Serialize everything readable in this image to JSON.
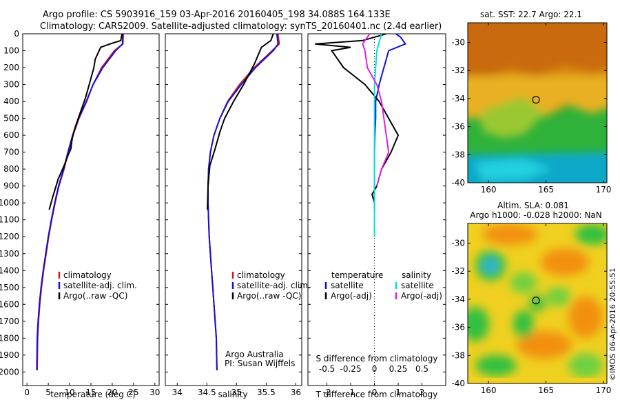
{
  "header": {
    "line1": "Argo profile: CS 5903916_159 03-Apr-2016 20160405_198 34.088S 164.133E",
    "line2": "Climatology: CARS2009. Satellite-adjusted climatology: synTS_20160401.nc (2.4d earlier)"
  },
  "colors": {
    "climatology": "#d01818",
    "satellite": "#1010e0",
    "argo": "#000000",
    "salinity_sat": "#00e0e0",
    "salinity_argo": "#e020e0"
  },
  "chart_data": [
    {
      "name": "temperature-panel",
      "type": "line",
      "xlabel": "temperature (deg C)",
      "ylabel": "",
      "xlim": [
        -1,
        31
      ],
      "ylim": [
        2080,
        0
      ],
      "xticks": [
        0,
        5,
        10,
        15,
        20,
        25,
        30
      ],
      "yticks": [
        0,
        100,
        200,
        300,
        400,
        500,
        600,
        700,
        800,
        900,
        1000,
        1100,
        1200,
        1300,
        1400,
        1500,
        1600,
        1700,
        1800,
        1900,
        2000
      ],
      "legend": {
        "items": [
          {
            "label": "climatology",
            "color": "#d01818"
          },
          {
            "label": "satellite-adj. clim.",
            "color": "#1010e0"
          },
          {
            "label": "Argo(..raw -QC)",
            "color": "#000000"
          }
        ]
      },
      "series": [
        {
          "name": "climatology",
          "color": "#d01818",
          "x": [
            22.6,
            22.5,
            20.5,
            17.5,
            15.5,
            14.0,
            12.2,
            10.8,
            9.7,
            8.7,
            7.5,
            6.6,
            5.8,
            5.1,
            4.5,
            3.9,
            3.4,
            3.0,
            2.7,
            2.5,
            2.4
          ],
          "y": [
            0,
            60,
            100,
            200,
            300,
            400,
            500,
            600,
            700,
            800,
            900,
            1000,
            1100,
            1200,
            1300,
            1400,
            1500,
            1600,
            1700,
            1800,
            1990
          ]
        },
        {
          "name": "satellite-adj. clim.",
          "color": "#1010e0",
          "x": [
            22.5,
            22.4,
            20.8,
            17.8,
            15.5,
            13.9,
            12.1,
            10.7,
            9.6,
            8.6,
            7.4,
            6.5,
            5.7,
            5.0,
            4.4,
            3.8,
            3.3,
            2.9,
            2.6,
            2.4,
            2.3
          ],
          "y": [
            0,
            60,
            100,
            200,
            300,
            400,
            500,
            600,
            700,
            800,
            900,
            1000,
            1100,
            1200,
            1300,
            1400,
            1500,
            1600,
            1700,
            1800,
            1990
          ]
        },
        {
          "name": "Argo(..raw -QC)",
          "color": "#000000",
          "x": [
            22.3,
            22.0,
            19.5,
            17.3,
            16.0,
            15.7,
            14.6,
            13.7,
            12.3,
            11.2,
            10.6,
            10.3,
            9.6,
            8.7,
            7.3,
            6.1,
            5.2
          ],
          "y": [
            0,
            40,
            60,
            80,
            150,
            200,
            300,
            380,
            480,
            560,
            620,
            680,
            720,
            780,
            860,
            960,
            1040
          ]
        }
      ]
    },
    {
      "name": "salinity-panel",
      "type": "line",
      "xlabel": "salinity",
      "ylabel": "",
      "xlim": [
        33.8,
        36.1
      ],
      "ylim": [
        2080,
        0
      ],
      "xticks": [
        34,
        34.5,
        35,
        35.5,
        36
      ],
      "legend": {
        "items": [
          {
            "label": "climatology",
            "color": "#d01818"
          },
          {
            "label": "satellite-adj. clim.",
            "color": "#1010e0"
          },
          {
            "label": "Argo(..raw -QC)",
            "color": "#000000"
          }
        ]
      },
      "notes": [
        "Argo Australia",
        "PI: Susan Wijffels"
      ],
      "series": [
        {
          "name": "climatology",
          "color": "#d01818",
          "x": [
            35.7,
            35.72,
            35.6,
            35.3,
            35.05,
            34.85,
            34.72,
            34.62,
            34.56,
            34.53,
            34.52,
            34.52,
            34.53,
            34.54,
            34.56,
            34.58,
            34.6,
            34.62,
            34.64,
            34.66,
            34.67
          ],
          "y": [
            0,
            60,
            100,
            200,
            300,
            400,
            500,
            600,
            700,
            800,
            900,
            1000,
            1100,
            1200,
            1300,
            1400,
            1500,
            1600,
            1700,
            1800,
            1990
          ]
        },
        {
          "name": "satellite-adj. clim.",
          "color": "#1010e0",
          "x": [
            35.68,
            35.7,
            35.62,
            35.32,
            35.08,
            34.86,
            34.72,
            34.62,
            34.56,
            34.53,
            34.52,
            34.52,
            34.53,
            34.54,
            34.56,
            34.58,
            34.6,
            34.62,
            34.64,
            34.66,
            34.67
          ],
          "y": [
            0,
            60,
            100,
            200,
            300,
            400,
            500,
            600,
            700,
            800,
            900,
            1000,
            1100,
            1200,
            1300,
            1400,
            1500,
            1600,
            1700,
            1800,
            1990
          ]
        },
        {
          "name": "Argo(..raw -QC)",
          "color": "#000000",
          "x": [
            35.62,
            35.58,
            35.42,
            35.3,
            35.12,
            34.95,
            34.8,
            34.72,
            34.64,
            34.55,
            34.52,
            34.51
          ],
          "y": [
            0,
            40,
            80,
            180,
            300,
            400,
            500,
            580,
            680,
            780,
            900,
            1040
          ]
        }
      ]
    },
    {
      "name": "difference-panel",
      "type": "line",
      "xlabel": "T difference from climatology",
      "title": "S difference from climatology",
      "xlim": [
        -2.8,
        3.0
      ],
      "ylim": [
        2080,
        0
      ],
      "xticks": [
        -2,
        -1,
        0,
        1,
        2
      ],
      "top_ticks": [
        "-0.5",
        "-0.25",
        "0",
        "0.25",
        "0.5"
      ],
      "top_ticks_x": [
        -2,
        -1,
        0,
        1,
        2
      ],
      "legend": {
        "headers": [
          "temperature",
          "salinity"
        ],
        "items": [
          {
            "label": "satellite",
            "color": "#1010e0"
          },
          {
            "label": "satellite",
            "color": "#00e0e0"
          },
          {
            "label": "Argo(-adj)",
            "color": "#000000"
          },
          {
            "label": "Argo(-adj)",
            "color": "#e020e0"
          }
        ]
      },
      "series": [
        {
          "name": "temperature satellite",
          "color": "#1010e0",
          "x": [
            0.9,
            1.1,
            1.3,
            0.6,
            0.4,
            0.2,
            0.05,
            0.05,
            0.02,
            0.0,
            0.0,
            0.0,
            0.0
          ],
          "y": [
            0,
            20,
            60,
            100,
            200,
            300,
            400,
            500,
            600,
            700,
            800,
            900,
            1000
          ]
        },
        {
          "name": "temperature Argo(-adj)",
          "color": "#000000",
          "x": [
            0.5,
            -0.5,
            -2.5,
            -1.0,
            -1.8,
            -1.3,
            -0.4,
            0.2,
            0.6,
            1.0,
            0.7,
            0.3,
            0.1,
            -0.1,
            0.0,
            0.0
          ],
          "y": [
            0,
            40,
            60,
            80,
            100,
            200,
            300,
            400,
            500,
            600,
            700,
            800,
            900,
            950,
            1000,
            1040
          ]
        },
        {
          "name": "salinity satellite",
          "color": "#00e0e0",
          "x": [
            0.3,
            0.2,
            0.1,
            0.05,
            0.0,
            0.0,
            0.0,
            0.0,
            0.0,
            0.0
          ],
          "y": [
            0,
            50,
            100,
            200,
            300,
            400,
            600,
            800,
            1000,
            1200
          ]
        },
        {
          "name": "salinity Argo(-adj)",
          "color": "#e020e0",
          "x": [
            -0.2,
            -0.5,
            -0.4,
            -0.3,
            0.1,
            0.3,
            0.4,
            0.6,
            0.3,
            0.1
          ],
          "y": [
            0,
            60,
            100,
            200,
            300,
            400,
            500,
            700,
            800,
            900
          ]
        }
      ]
    },
    {
      "name": "sst-map",
      "type": "heatmap",
      "title": "sat. SST: 22.7 Argo: 22.1",
      "xlim": [
        158.2,
        170.3
      ],
      "ylim": [
        -40,
        -28.6
      ],
      "xticks": [
        160,
        165,
        170
      ],
      "yticks": [
        -30,
        -32,
        -34,
        -36,
        -38,
        -40
      ],
      "marker": {
        "lon": 164.133,
        "lat": -34.088
      }
    },
    {
      "name": "sla-map",
      "type": "heatmap",
      "title": "Altim. SLA: 0.081",
      "subtitle": "Argo h1000: -0.028 h2000: NaN",
      "xlim": [
        158.2,
        170.3
      ],
      "ylim": [
        -40,
        -28.6
      ],
      "xticks": [
        160,
        165,
        170
      ],
      "yticks": [
        -30,
        -32,
        -34,
        -36,
        -38,
        -40
      ],
      "marker": {
        "lon": 164.133,
        "lat": -34.088
      }
    }
  ],
  "credit": "©IMOS 06-Apr-2016 20:55:51"
}
